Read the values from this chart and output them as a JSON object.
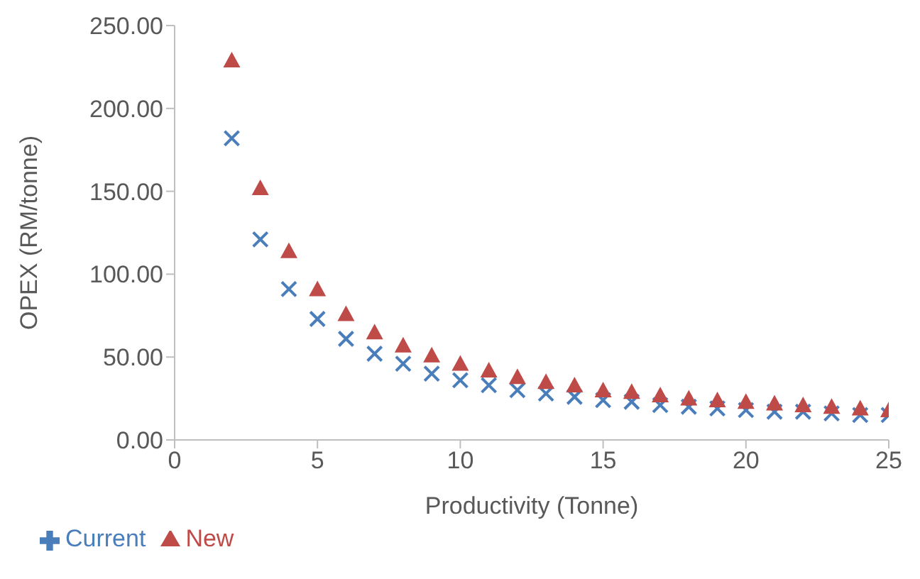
{
  "chart_data": {
    "type": "scatter",
    "xlabel": "Productivity (Tonne)",
    "ylabel": "OPEX (RM/tonne)",
    "x": [
      2,
      3,
      4,
      5,
      6,
      7,
      8,
      9,
      10,
      11,
      12,
      13,
      14,
      15,
      16,
      17,
      18,
      19,
      20,
      21,
      22,
      23,
      24,
      25
    ],
    "series": [
      {
        "name": "Current",
        "color": "#4a7ebb",
        "marker": "cross",
        "values": [
          182,
          121,
          91,
          73,
          61,
          52,
          46,
          40,
          36,
          33,
          30,
          28,
          26,
          24,
          23,
          21,
          20,
          19,
          18,
          17,
          17,
          16,
          15,
          15
        ]
      },
      {
        "name": "New",
        "color": "#be4b48",
        "marker": "triangle",
        "values": [
          229,
          152,
          114,
          91,
          76,
          65,
          57,
          51,
          46,
          42,
          38,
          35,
          33,
          30,
          29,
          27,
          25,
          24,
          23,
          22,
          21,
          20,
          19,
          18
        ]
      }
    ],
    "xlim": [
      0,
      25
    ],
    "xticks": [
      0,
      5,
      10,
      15,
      20,
      25
    ],
    "ylim": [
      0,
      250
    ],
    "yticks": [
      {
        "value": 0,
        "label": "0.00"
      },
      {
        "value": 50,
        "label": "50.00"
      },
      {
        "value": 100,
        "label": "100.00"
      },
      {
        "value": 150,
        "label": "150.00"
      },
      {
        "value": 200,
        "label": "200.00"
      },
      {
        "value": 250,
        "label": "250.00"
      }
    ],
    "legend": "bottom left"
  }
}
